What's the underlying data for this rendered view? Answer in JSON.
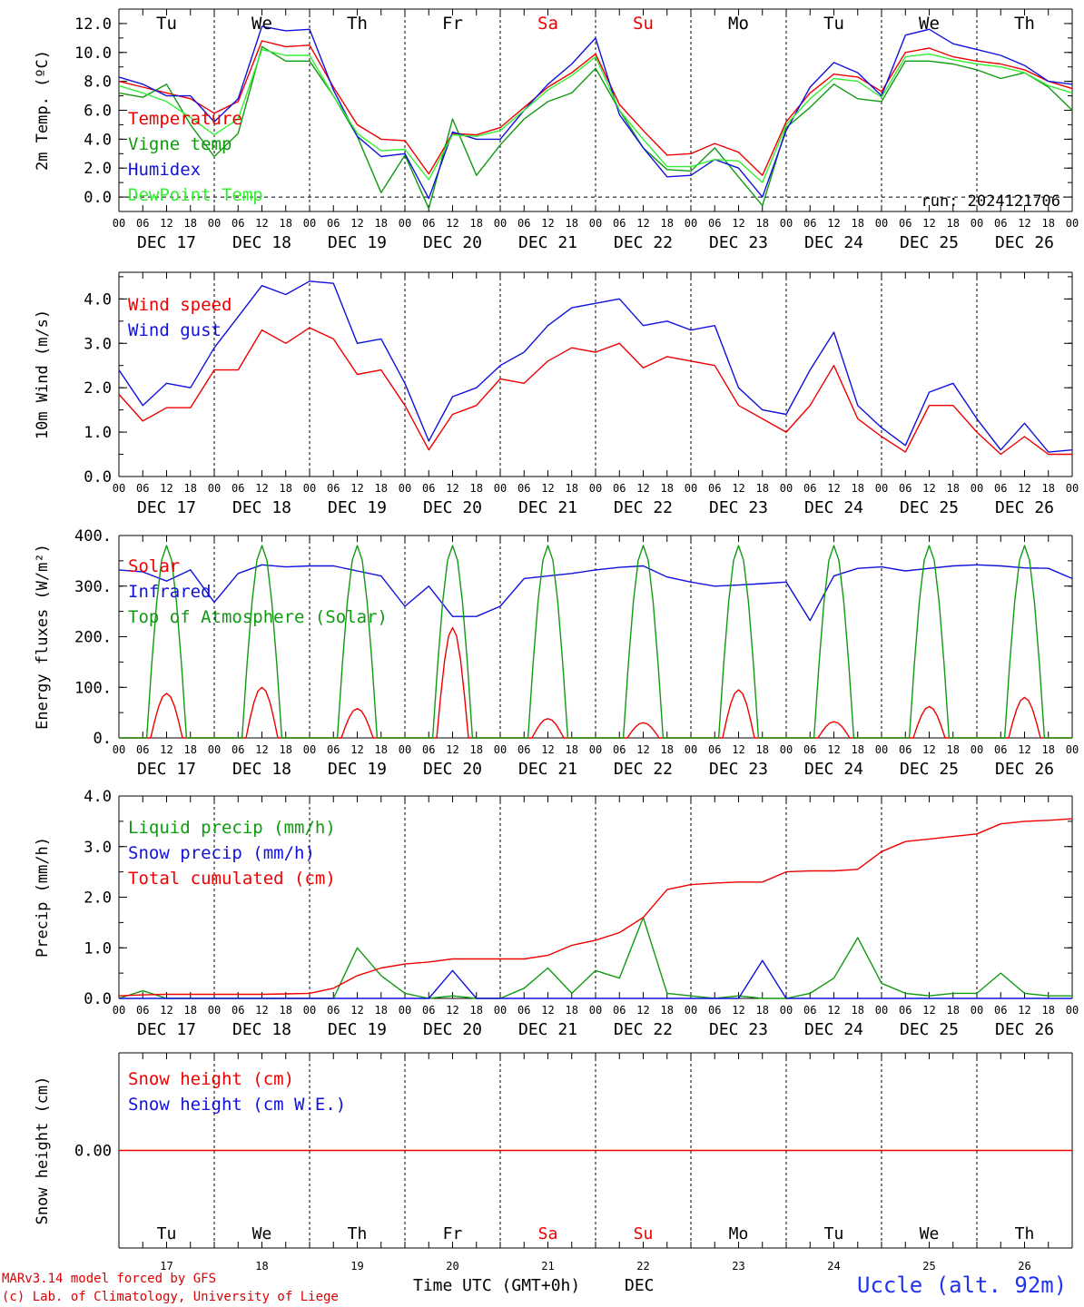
{
  "days": {
    "abbr": [
      "Tu",
      "We",
      "Th",
      "Fr",
      "Sa",
      "Su",
      "Mo",
      "Tu",
      "We",
      "Th"
    ],
    "dates": [
      "DEC 17",
      "DEC 18",
      "DEC 19",
      "DEC 20",
      "DEC 21",
      "DEC 22",
      "DEC 23",
      "DEC 24",
      "DEC 25",
      "DEC 26"
    ],
    "numbers": [
      "17",
      "18",
      "19",
      "20",
      "21",
      "22",
      "23",
      "24",
      "25",
      "26"
    ],
    "weekend": [
      false,
      false,
      false,
      false,
      true,
      true,
      false,
      false,
      false,
      false
    ],
    "hours": [
      "00",
      "06",
      "12",
      "18"
    ],
    "end_hour": "00"
  },
  "colors": {
    "red": "#ee0000",
    "green": "#119911",
    "lightgreen": "#33ee33",
    "blue": "#1111dd",
    "weekend": "#ee0000",
    "text": "#000000"
  },
  "chart_data": [
    {
      "type": "line",
      "ylabel": "2m Temp. (ºC)",
      "ylim": [
        -1.0,
        13.0
      ],
      "yticks": [
        0.0,
        2.0,
        4.0,
        6.0,
        8.0,
        10.0,
        12.0
      ],
      "ytick_labels": [
        "0.0",
        "2.0",
        "4.0",
        "6.0",
        "8.0",
        "10.0",
        "12.0"
      ],
      "zero_dashed": true,
      "annotation": "run: 2024121706",
      "x_hours": [
        0,
        6,
        12,
        18,
        24,
        30,
        36,
        42,
        48,
        54,
        60,
        66,
        72,
        78,
        84,
        90,
        96,
        102,
        108,
        114,
        120,
        126,
        132,
        138,
        144,
        150,
        156,
        162,
        168,
        174,
        180,
        186,
        192,
        198,
        204,
        210,
        216,
        222,
        228,
        234,
        240
      ],
      "series": [
        {
          "name": "Temperature",
          "color": "red",
          "values": [
            8.0,
            7.6,
            7.2,
            6.8,
            5.8,
            6.6,
            10.8,
            10.4,
            10.5,
            7.6,
            5.0,
            4.0,
            3.9,
            1.6,
            4.4,
            4.3,
            4.8,
            6.2,
            7.6,
            8.6,
            9.9,
            6.4,
            4.6,
            2.9,
            3.0,
            3.7,
            3.1,
            1.5,
            5.2,
            7.2,
            8.5,
            8.3,
            7.3,
            10.0,
            10.3,
            9.7,
            9.4,
            9.2,
            8.8,
            8.0,
            7.5
          ]
        },
        {
          "name": "Vigne temp",
          "color": "green",
          "values": [
            7.2,
            6.9,
            7.8,
            5.0,
            2.8,
            4.4,
            10.4,
            9.4,
            9.4,
            7.0,
            4.2,
            0.3,
            2.9,
            -0.8,
            5.4,
            1.5,
            3.6,
            5.4,
            6.6,
            7.2,
            8.9,
            6.0,
            3.4,
            1.9,
            1.8,
            3.4,
            1.4,
            -0.6,
            4.8,
            6.2,
            7.8,
            6.8,
            6.6,
            9.4,
            9.4,
            9.2,
            8.8,
            8.2,
            8.6,
            7.6,
            6.0
          ]
        },
        {
          "name": "Humidex",
          "color": "blue",
          "values": [
            8.3,
            7.8,
            7.0,
            7.0,
            5.2,
            6.8,
            11.8,
            11.5,
            11.6,
            7.4,
            4.2,
            2.8,
            3.0,
            -0.1,
            4.5,
            4.0,
            4.0,
            6.0,
            7.8,
            9.2,
            11.0,
            5.7,
            3.4,
            1.4,
            1.5,
            2.6,
            2.0,
            0.0,
            4.6,
            7.6,
            9.3,
            8.6,
            7.0,
            11.2,
            11.6,
            10.6,
            10.2,
            9.8,
            9.1,
            8.0,
            7.8
          ]
        },
        {
          "name": "DewPoint Temp",
          "color": "lightgreen",
          "values": [
            7.7,
            7.2,
            6.6,
            5.5,
            4.3,
            5.4,
            10.2,
            9.8,
            9.8,
            7.0,
            4.4,
            3.2,
            3.3,
            1.2,
            4.3,
            4.2,
            4.6,
            6.0,
            7.4,
            8.4,
            9.7,
            6.0,
            4.0,
            2.1,
            2.1,
            2.6,
            2.5,
            1.0,
            5.0,
            6.8,
            8.2,
            8.0,
            6.9,
            9.7,
            9.9,
            9.5,
            9.2,
            9.0,
            8.6,
            7.7,
            7.2
          ]
        }
      ]
    },
    {
      "type": "line",
      "ylabel": "10m Wind (m/s)",
      "ylim": [
        0.0,
        4.6
      ],
      "yticks": [
        0.0,
        1.0,
        2.0,
        3.0,
        4.0
      ],
      "ytick_labels": [
        "0.0",
        "1.0",
        "2.0",
        "3.0",
        "4.0"
      ],
      "x_hours": [
        0,
        6,
        12,
        18,
        24,
        30,
        36,
        42,
        48,
        54,
        60,
        66,
        72,
        78,
        84,
        90,
        96,
        102,
        108,
        114,
        120,
        126,
        132,
        138,
        144,
        150,
        156,
        162,
        168,
        174,
        180,
        186,
        192,
        198,
        204,
        210,
        216,
        222,
        228,
        234,
        240
      ],
      "series": [
        {
          "name": "Wind speed",
          "color": "red",
          "values": [
            1.85,
            1.25,
            1.55,
            1.55,
            2.4,
            2.4,
            3.3,
            3.0,
            3.35,
            3.1,
            2.3,
            2.4,
            1.6,
            0.6,
            1.4,
            1.6,
            2.2,
            2.1,
            2.6,
            2.9,
            2.8,
            3.0,
            2.45,
            2.7,
            2.6,
            2.5,
            1.6,
            1.3,
            1.0,
            1.6,
            2.5,
            1.3,
            0.9,
            0.55,
            1.6,
            1.6,
            1.0,
            0.5,
            0.9,
            0.5,
            0.5
          ]
        },
        {
          "name": "Wind gust",
          "color": "blue",
          "values": [
            2.4,
            1.6,
            2.1,
            2.0,
            2.9,
            3.6,
            4.3,
            4.1,
            4.4,
            4.35,
            3.0,
            3.1,
            2.1,
            0.8,
            1.8,
            2.0,
            2.5,
            2.8,
            3.4,
            3.8,
            3.9,
            4.0,
            3.4,
            3.5,
            3.3,
            3.4,
            2.0,
            1.5,
            1.4,
            2.4,
            3.25,
            1.6,
            1.1,
            0.7,
            1.9,
            2.1,
            1.3,
            0.6,
            1.2,
            0.55,
            0.6
          ]
        }
      ]
    },
    {
      "type": "line",
      "ylabel": "Energy fluxes (W/m²)",
      "ylim": [
        0,
        400
      ],
      "yticks": [
        0,
        100,
        200,
        300,
        400
      ],
      "ytick_labels": [
        "0.",
        "100.",
        "200.",
        "300.",
        "400."
      ],
      "day_peaks": {
        "Top of Atmosphere (Solar)": [
          380,
          380,
          380,
          380,
          380,
          380,
          380,
          380,
          380,
          380
        ],
        "Solar": [
          88,
          100,
          58,
          218,
          38,
          30,
          95,
          32,
          62,
          80
        ]
      },
      "x_hours": [
        0,
        6,
        12,
        18,
        24,
        30,
        36,
        42,
        48,
        54,
        60,
        66,
        72,
        78,
        84,
        90,
        96,
        102,
        108,
        114,
        120,
        126,
        132,
        138,
        144,
        150,
        156,
        162,
        168,
        174,
        180,
        186,
        192,
        198,
        204,
        210,
        216,
        222,
        228,
        234,
        240
      ],
      "series": [
        {
          "name": "Solar",
          "color": "red",
          "values": []
        },
        {
          "name": "Infrared",
          "color": "blue",
          "values": [
            332,
            328,
            310,
            332,
            268,
            325,
            342,
            338,
            340,
            340,
            330,
            320,
            260,
            300,
            240,
            240,
            260,
            315,
            320,
            325,
            332,
            337,
            340,
            318,
            308,
            300,
            302,
            305,
            308,
            232,
            320,
            335,
            338,
            330,
            335,
            340,
            342,
            340,
            336,
            335,
            315
          ]
        },
        {
          "name": "Top of Atmosphere (Solar)",
          "color": "green",
          "values": []
        }
      ]
    },
    {
      "type": "line",
      "ylabel": "Precip (mm/h)",
      "ylim": [
        0.0,
        4.0
      ],
      "yticks": [
        0.0,
        1.0,
        2.0,
        3.0,
        4.0
      ],
      "ytick_labels": [
        "0.0",
        "1.0",
        "2.0",
        "3.0",
        "4.0"
      ],
      "x_hours": [
        0,
        6,
        12,
        18,
        24,
        30,
        36,
        42,
        48,
        54,
        60,
        66,
        72,
        78,
        84,
        90,
        96,
        102,
        108,
        114,
        120,
        126,
        132,
        138,
        144,
        150,
        156,
        162,
        168,
        174,
        180,
        186,
        192,
        198,
        204,
        210,
        216,
        222,
        228,
        234,
        240
      ],
      "series": [
        {
          "name": "Liquid precip (mm/h)",
          "color": "green",
          "values": [
            0.0,
            0.15,
            0.0,
            0.0,
            0.0,
            0.0,
            0.0,
            0.0,
            0.0,
            0.0,
            1.0,
            0.45,
            0.1,
            0.0,
            0.05,
            0.0,
            0.0,
            0.2,
            0.6,
            0.1,
            0.55,
            0.4,
            1.6,
            0.1,
            0.05,
            0.0,
            0.05,
            0.0,
            0.0,
            0.1,
            0.4,
            1.2,
            0.3,
            0.1,
            0.05,
            0.1,
            0.1,
            0.5,
            0.1,
            0.05,
            0.05
          ]
        },
        {
          "name": "Snow precip (mm/h)",
          "color": "blue",
          "values": [
            0.0,
            0.0,
            0.0,
            0.0,
            0.0,
            0.0,
            0.0,
            0.0,
            0.0,
            0.0,
            0.0,
            0.0,
            0.0,
            0.0,
            0.55,
            0.0,
            0.0,
            0.0,
            0.0,
            0.0,
            0.0,
            0.0,
            0.0,
            0.0,
            0.0,
            0.0,
            0.0,
            0.75,
            0.0,
            0.0,
            0.0,
            0.0,
            0.0,
            0.0,
            0.0,
            0.0,
            0.0,
            0.0,
            0.0,
            0.0,
            0.0
          ]
        },
        {
          "name": "Total cumulated (cm)",
          "color": "red",
          "values": [
            0.05,
            0.07,
            0.08,
            0.08,
            0.08,
            0.08,
            0.08,
            0.09,
            0.1,
            0.2,
            0.45,
            0.6,
            0.68,
            0.72,
            0.78,
            0.78,
            0.78,
            0.78,
            0.85,
            1.05,
            1.15,
            1.3,
            1.6,
            2.15,
            2.25,
            2.28,
            2.3,
            2.3,
            2.5,
            2.52,
            2.52,
            2.55,
            2.9,
            3.1,
            3.15,
            3.2,
            3.25,
            3.45,
            3.5,
            3.52,
            3.55
          ]
        }
      ]
    },
    {
      "type": "line",
      "ylabel": "Snow height (cm)",
      "ylim": [
        -1.0,
        1.0
      ],
      "yticks": [
        0.0
      ],
      "ytick_labels": [
        "0.00"
      ],
      "x_hours": [
        0,
        240
      ],
      "series": [
        {
          "name": "Snow height (cm)",
          "color": "red",
          "values": [
            0.0,
            0.0
          ]
        },
        {
          "name": "Snow height (cm W.E.)",
          "color": "blue",
          "values": []
        }
      ]
    }
  ],
  "footer": {
    "credit1": "MARv3.14 model forced by GFS",
    "credit2": "(c) Lab. of Climatology, University of Liege",
    "xlabel": "Time UTC (GMT+0h)",
    "month": "DEC",
    "station": "Uccle (alt. 92m)"
  }
}
